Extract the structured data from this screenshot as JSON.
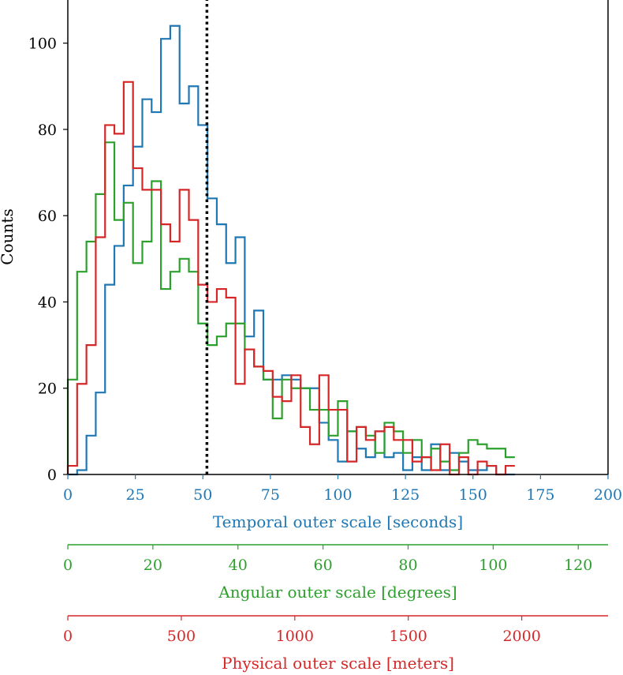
{
  "chart_data": {
    "type": "histogram",
    "ylabel": "Counts",
    "ylim": [
      0,
      110
    ],
    "yticks": [
      0,
      20,
      40,
      60,
      80,
      100
    ],
    "grid": false,
    "legend": "none",
    "bin_width_seconds": 3.448,
    "reference_line": {
      "x": 51.5,
      "style": "dotted",
      "color": "#000000"
    },
    "axes": [
      {
        "key": "temporal",
        "label": "Temporal outer scale [seconds]",
        "color": "#1f77b4",
        "range": [
          0,
          200
        ],
        "ticks": [
          0,
          25,
          50,
          75,
          100,
          125,
          150,
          175,
          200
        ]
      },
      {
        "key": "angular",
        "label": "Angular outer scale [degrees]",
        "color": "#2ca02c",
        "range": [
          0,
          127
        ],
        "ticks": [
          0,
          20,
          40,
          60,
          80,
          100,
          120
        ]
      },
      {
        "key": "physical",
        "label": "Physical outer scale [meters]",
        "color": "#d62728",
        "range": [
          0,
          2380
        ],
        "ticks": [
          0,
          500,
          1000,
          1500,
          2000
        ]
      }
    ],
    "series": [
      {
        "key": "temporal",
        "color": "#1f77b4",
        "values": [
          0,
          1,
          9,
          19,
          44,
          53,
          67,
          76,
          87,
          84,
          101,
          104,
          86,
          90,
          81,
          64,
          58,
          49,
          55,
          32,
          38,
          22,
          22,
          23,
          22,
          20,
          20,
          12,
          8,
          3,
          10,
          6,
          4,
          10,
          4,
          5,
          1,
          4,
          1,
          7,
          1,
          5,
          3,
          1,
          1,
          2,
          0,
          0
        ]
      },
      {
        "key": "angular",
        "color": "#2ca02c",
        "values": [
          22,
          47,
          54,
          65,
          77,
          59,
          63,
          49,
          54,
          68,
          43,
          47,
          50,
          47,
          35,
          30,
          32,
          35,
          35,
          29,
          25,
          22,
          13,
          22,
          20,
          20,
          15,
          15,
          9,
          17,
          10,
          11,
          9,
          5,
          12,
          10,
          5,
          8,
          4,
          6,
          3,
          1,
          5,
          8,
          7,
          6,
          6,
          4
        ]
      },
      {
        "key": "physical",
        "color": "#d62728",
        "values": [
          2,
          21,
          30,
          55,
          81,
          79,
          91,
          71,
          66,
          66,
          58,
          54,
          66,
          59,
          44,
          40,
          43,
          41,
          21,
          29,
          25,
          24,
          18,
          17,
          23,
          11,
          7,
          23,
          15,
          15,
          3,
          11,
          8,
          10,
          11,
          8,
          8,
          3,
          4,
          1,
          7,
          0,
          4,
          0,
          3,
          2,
          0,
          2
        ]
      }
    ]
  }
}
